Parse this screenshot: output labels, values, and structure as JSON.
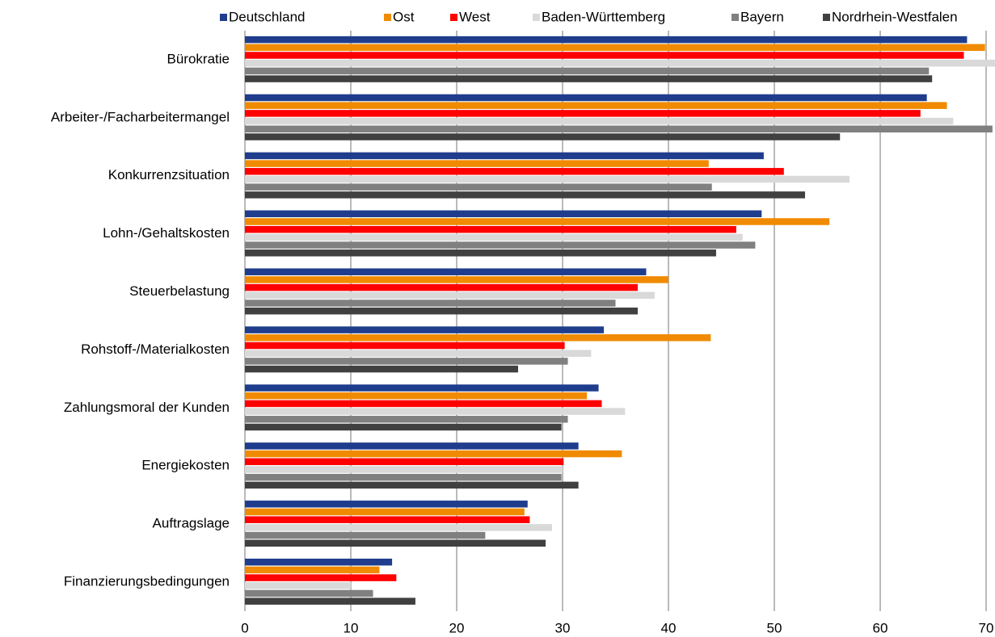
{
  "chart_data": {
    "type": "hbar",
    "categories": [
      "Bürokratie",
      "Arbeiter-/Facharbeitermangel",
      "Konkurrenzsituation",
      "Lohn-/Gehaltskosten",
      "Steuerbelastung",
      "Rohstoff-/Materialkosten",
      "Zahlungsmoral der Kunden",
      "Energiekosten",
      "Auftragslage",
      "Finanzierungsbedingungen"
    ],
    "series": [
      {
        "name": "Deutschland",
        "color": "#1f3d8c",
        "values": [
          68.2,
          64.4,
          49.0,
          48.8,
          37.9,
          33.9,
          33.4,
          31.5,
          26.7,
          13.9
        ]
      },
      {
        "name": "Ost",
        "color": "#f08a00",
        "values": [
          69.9,
          66.3,
          43.8,
          55.2,
          40.0,
          44.0,
          32.3,
          35.6,
          26.4,
          12.7
        ]
      },
      {
        "name": "West",
        "color": "#ff0000",
        "values": [
          67.9,
          63.8,
          50.9,
          46.4,
          37.1,
          30.2,
          33.7,
          30.1,
          26.9,
          14.3
        ]
      },
      {
        "name": "Baden-Württemberg",
        "color": "#d9d9d9",
        "values": [
          71.0,
          66.9,
          57.1,
          47.0,
          38.7,
          32.7,
          35.9,
          30.0,
          29.0,
          10.0
        ]
      },
      {
        "name": "Bayern",
        "color": "#808080",
        "values": [
          64.6,
          70.6,
          44.1,
          48.2,
          35.0,
          30.5,
          30.5,
          29.9,
          22.7,
          12.1
        ]
      },
      {
        "name": "Nordrhein-Westfalen",
        "color": "#404040",
        "values": [
          64.9,
          56.2,
          52.9,
          44.5,
          37.1,
          25.8,
          29.9,
          31.5,
          28.4,
          16.1
        ]
      }
    ],
    "xlim": [
      0,
      70
    ],
    "xticks": [
      0,
      10,
      20,
      30,
      40,
      50,
      60,
      70
    ],
    "grid": true,
    "legend": "top"
  }
}
